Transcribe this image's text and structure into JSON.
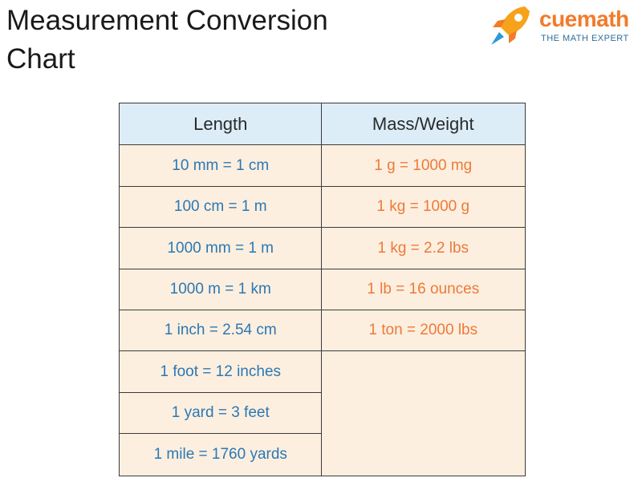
{
  "header": {
    "title": "Measurement Conversion Chart",
    "logo": {
      "name": "cuemath",
      "tagline": "THE MATH EXPERT"
    }
  },
  "table": {
    "headers": [
      "Length",
      "Mass/Weight"
    ],
    "length": [
      "10 mm = 1 cm",
      "100 cm = 1 m",
      "1000 mm = 1 m",
      "1000 m = 1 km",
      "1 inch = 2.54 cm",
      "1 foot = 12 inches",
      "1 yard = 3 feet",
      "1 mile = 1760 yards"
    ],
    "mass": [
      "1 g = 1000 mg",
      "1 kg = 1000 g",
      "1 kg = 2.2 lbs",
      "1 lb = 16 ounces",
      "1 ton = 2000 lbs"
    ]
  }
}
